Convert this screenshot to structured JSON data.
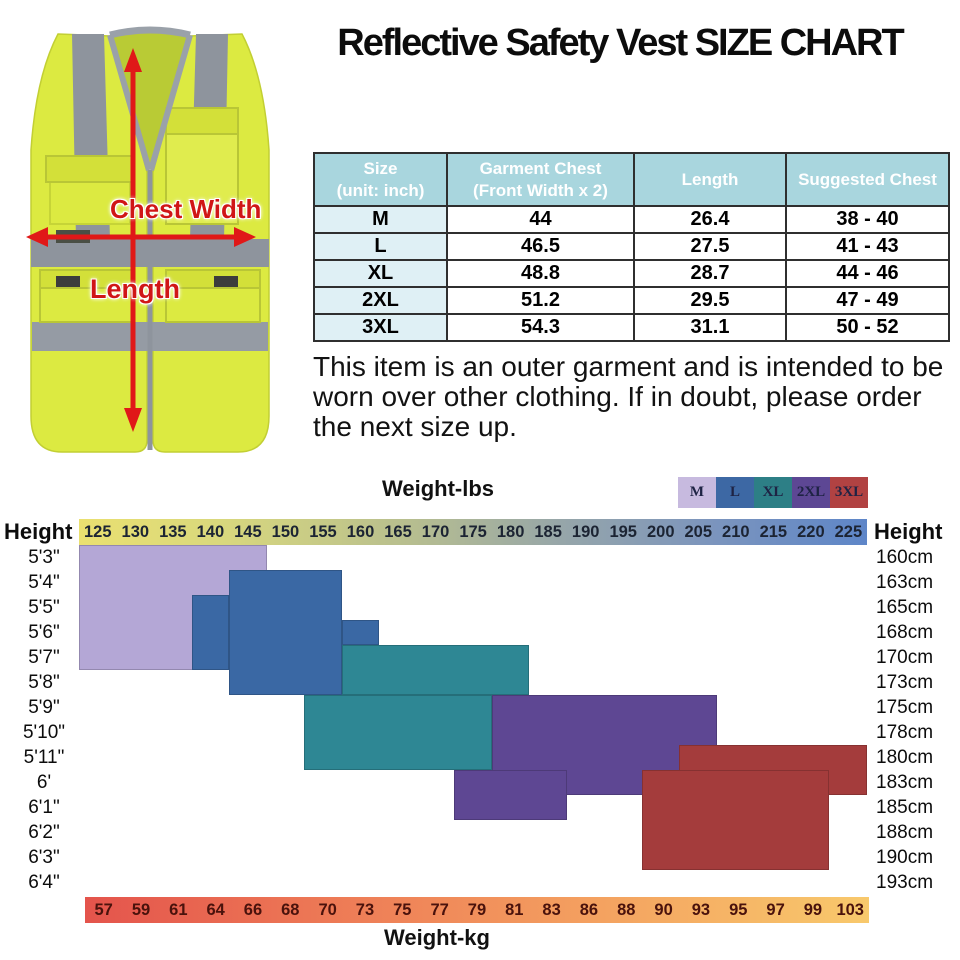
{
  "title": "Reflective Safety Vest SIZE CHART",
  "vest": {
    "chest_width_label": "Chest Width",
    "length_label": "Length"
  },
  "size_table": {
    "headers": [
      "Size\n(unit: inch)",
      "Garment Chest\n(Front Width x 2)",
      "Length",
      "Suggested Chest"
    ],
    "rows": [
      [
        "M",
        "44",
        "26.4",
        "38 - 40"
      ],
      [
        "L",
        "46.5",
        "27.5",
        "41 - 43"
      ],
      [
        "XL",
        "48.8",
        "28.7",
        "44 - 46"
      ],
      [
        "2XL",
        "51.2",
        "29.5",
        "47 - 49"
      ],
      [
        "3XL",
        "54.3",
        "31.1",
        "50 - 52"
      ]
    ]
  },
  "note": "This item is an outer garment and is intended to be worn over other clothing. If in doubt, please order the next size up.",
  "chart_data": {
    "type": "heatmap",
    "title_top": "Weight-lbs",
    "title_bottom": "Weight-kg",
    "axis_left_label": "Height",
    "axis_right_label": "Height",
    "weights_lbs": [
      125,
      130,
      135,
      140,
      145,
      150,
      155,
      160,
      165,
      170,
      175,
      180,
      185,
      190,
      195,
      200,
      205,
      210,
      215,
      220,
      225
    ],
    "weights_kg": [
      57,
      59,
      61,
      64,
      66,
      68,
      70,
      73,
      75,
      77,
      79,
      81,
      83,
      86,
      88,
      90,
      93,
      95,
      97,
      99,
      103
    ],
    "heights_ft": [
      "5'3\"",
      "5'4\"",
      "5'5\"",
      "5'6\"",
      "5'7\"",
      "5'8\"",
      "5'9\"",
      "5'10\"",
      "5'11\"",
      "6'",
      "6'1\"",
      "6'2\"",
      "6'3\"",
      "6'4\""
    ],
    "heights_cm": [
      "160cm",
      "163cm",
      "165cm",
      "168cm",
      "170cm",
      "173cm",
      "175cm",
      "178cm",
      "180cm",
      "183cm",
      "185cm",
      "188cm",
      "190cm",
      "193cm"
    ],
    "legend": [
      {
        "label": "M",
        "color": "#c7badf"
      },
      {
        "label": "L",
        "color": "#3d68a4"
      },
      {
        "label": "XL",
        "color": "#2d7f86"
      },
      {
        "label": "2XL",
        "color": "#5d4794"
      },
      {
        "label": "3XL",
        "color": "#b14242"
      }
    ],
    "regions": [
      {
        "size": "M",
        "color": "#b4a7d6",
        "rects": [
          {
            "c": 0,
            "r": 0,
            "w": 5,
            "h": 5
          }
        ]
      },
      {
        "size": "L",
        "color": "#3a68a4",
        "rects": [
          {
            "c": 4,
            "r": 1,
            "w": 3,
            "h": 5
          },
          {
            "c": 3,
            "r": 2,
            "w": 1,
            "h": 3
          },
          {
            "c": 7,
            "r": 3,
            "w": 1,
            "h": 1
          }
        ]
      },
      {
        "size": "XL",
        "color": "#2e8794",
        "rects": [
          {
            "c": 7,
            "r": 4,
            "w": 5,
            "h": 2
          },
          {
            "c": 6,
            "r": 6,
            "w": 5,
            "h": 3
          }
        ]
      },
      {
        "size": "2XL",
        "color": "#5e4793",
        "rects": [
          {
            "c": 11,
            "r": 6,
            "w": 6,
            "h": 4
          },
          {
            "c": 10,
            "r": 9,
            "w": 3,
            "h": 2
          }
        ]
      },
      {
        "size": "3XL",
        "color": "#a43c3c",
        "rects": [
          {
            "c": 16,
            "r": 8,
            "w": 5,
            "h": 2
          },
          {
            "c": 15,
            "r": 9,
            "w": 5,
            "h": 4
          }
        ]
      }
    ]
  }
}
